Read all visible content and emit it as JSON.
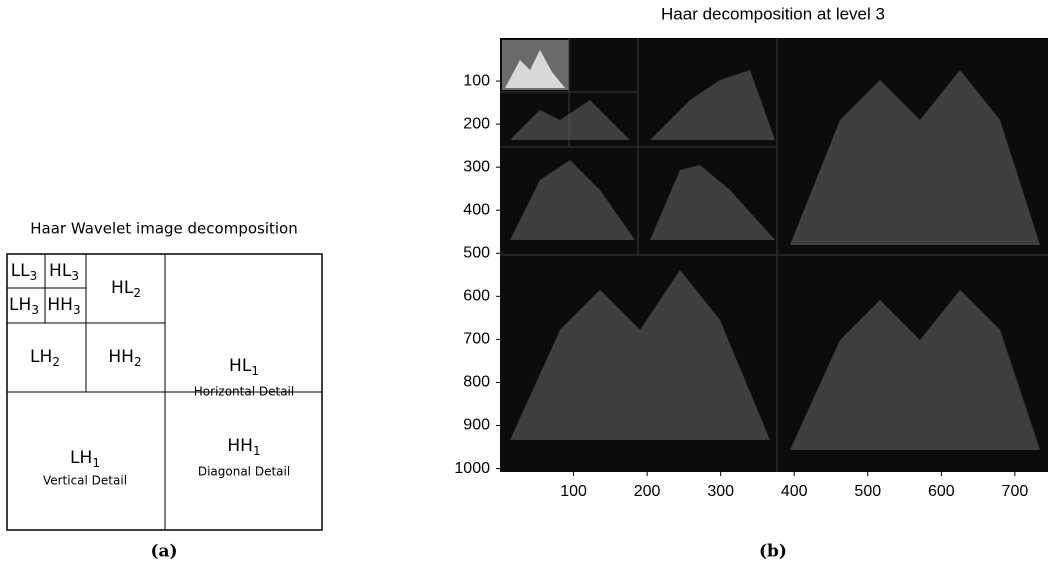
{
  "diagram": {
    "title": "Haar Wavelet image decomposition",
    "bands": [
      {
        "label": "LL",
        "sub": "3"
      },
      {
        "label": "HL",
        "sub": "3"
      },
      {
        "label": "LH",
        "sub": "3"
      },
      {
        "label": "HH",
        "sub": "3"
      },
      {
        "label": "HL",
        "sub": "2"
      },
      {
        "label": "LH",
        "sub": "2"
      },
      {
        "label": "HH",
        "sub": "2"
      },
      {
        "label": "HL",
        "sub": "1",
        "detail": "Horizontal Detail"
      },
      {
        "label": "LH",
        "sub": "1",
        "detail": "Vertical Detail"
      },
      {
        "label": "HH",
        "sub": "1",
        "detail": "Diagonal Detail"
      }
    ],
    "caption": "(a)"
  },
  "plot": {
    "title": "Haar decomposition at level 3",
    "xlim": [
      0,
      745
    ],
    "xticks": [
      100,
      200,
      300,
      400,
      500,
      600,
      700
    ],
    "ylim": [
      0,
      1008
    ],
    "yticks": [
      100,
      200,
      300,
      400,
      500,
      600,
      700,
      800,
      900,
      1000
    ],
    "yinverted": true,
    "caption": "(b)"
  }
}
